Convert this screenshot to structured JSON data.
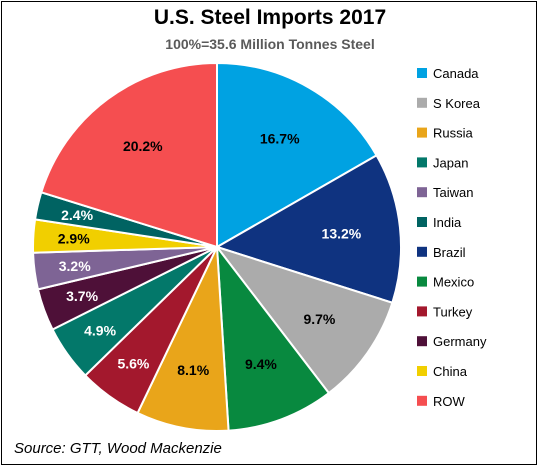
{
  "chart_data": {
    "type": "pie",
    "title": "U.S. Steel Imports 2017",
    "subtitle": "100%=35.6 Million Tonnes Steel",
    "source": "Source: GTT, Wood Mackenzie",
    "legend_position": "right",
    "slices": [
      {
        "name": "Canada",
        "value": 16.7,
        "label": "16.7%",
        "color": "#00A2E2",
        "label_color": "#000000"
      },
      {
        "name": "Brazil",
        "value": 13.2,
        "label": "13.2%",
        "color": "#0F3380",
        "label_color": "#ffffff"
      },
      {
        "name": "S Korea",
        "value": 9.7,
        "label": "9.7%",
        "color": "#ABABAB",
        "label_color": "#000000"
      },
      {
        "name": "Mexico",
        "value": 9.4,
        "label": "9.4%",
        "color": "#08893F",
        "label_color": "#000000"
      },
      {
        "name": "Russia",
        "value": 8.1,
        "label": "8.1%",
        "color": "#E9A51A",
        "label_color": "#000000"
      },
      {
        "name": "Turkey",
        "value": 5.6,
        "label": "5.6%",
        "color": "#A3182D",
        "label_color": "#ffffff"
      },
      {
        "name": "Japan",
        "value": 4.9,
        "label": "4.9%",
        "color": "#03786A",
        "label_color": "#ffffff"
      },
      {
        "name": "Germany",
        "value": 3.7,
        "label": "3.7%",
        "color": "#4E1038",
        "label_color": "#ffffff"
      },
      {
        "name": "Taiwan",
        "value": 3.2,
        "label": "3.2%",
        "color": "#7E6495",
        "label_color": "#ffffff"
      },
      {
        "name": "China",
        "value": 2.9,
        "label": "2.9%",
        "color": "#F1CF00",
        "label_color": "#000000"
      },
      {
        "name": "India",
        "value": 2.4,
        "label": "2.4%",
        "color": "#006362",
        "label_color": "#ffffff"
      },
      {
        "name": "ROW",
        "value": 20.2,
        "label": "20.2%",
        "color": "#F54E50",
        "label_color": "#000000"
      }
    ],
    "legend": [
      {
        "name": "Canada",
        "color": "#00A2E2"
      },
      {
        "name": "S Korea",
        "color": "#ABABAB"
      },
      {
        "name": "Russia",
        "color": "#E9A51A"
      },
      {
        "name": "Japan",
        "color": "#03786A"
      },
      {
        "name": "Taiwan",
        "color": "#7E6495"
      },
      {
        "name": "India",
        "color": "#006362"
      },
      {
        "name": "Brazil",
        "color": "#0F3380"
      },
      {
        "name": "Mexico",
        "color": "#08893F"
      },
      {
        "name": "Turkey",
        "color": "#A3182D"
      },
      {
        "name": "Germany",
        "color": "#4E1038"
      },
      {
        "name": "China",
        "color": "#F1CF00"
      },
      {
        "name": "ROW",
        "color": "#F54E50"
      }
    ]
  }
}
